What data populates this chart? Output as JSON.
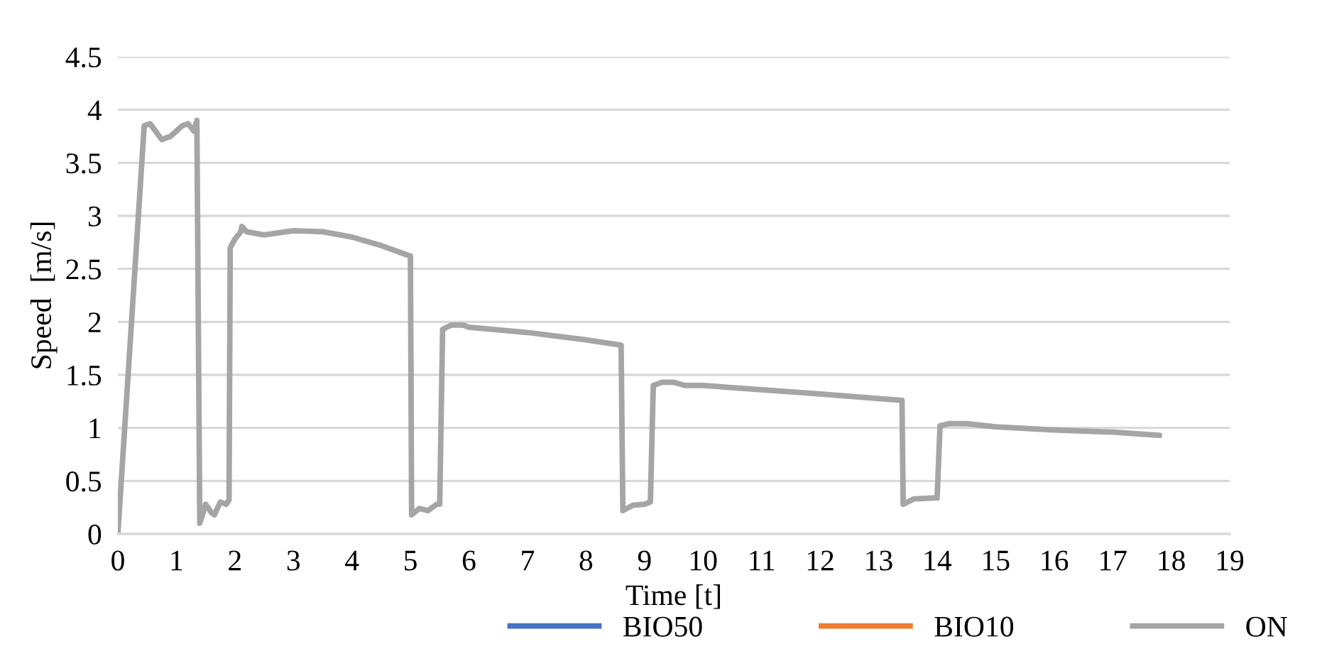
{
  "chart_data": {
    "type": "line",
    "xlabel": "Time [t]",
    "ylabel": "Speed  [m/s]",
    "x": [
      0,
      0.45,
      0.55,
      0.75,
      0.9,
      1.1,
      1.2,
      1.3,
      1.35,
      1.4,
      1.5,
      1.6,
      1.65,
      1.75,
      1.85,
      1.9,
      1.92,
      2.0,
      2.1,
      2.12,
      2.2,
      2.5,
      3.0,
      3.5,
      4.0,
      4.5,
      5.0,
      5.02,
      5.15,
      5.3,
      5.45,
      5.5,
      5.55,
      5.7,
      5.9,
      6.0,
      7.0,
      8.0,
      8.6,
      8.63,
      8.8,
      9.0,
      9.1,
      9.15,
      9.3,
      9.5,
      9.7,
      10,
      11,
      12,
      13.4,
      13.42,
      13.6,
      14.0,
      14.05,
      14.2,
      14.5,
      15,
      16,
      17,
      17.8
    ],
    "series": [
      {
        "name": "BIO50",
        "color": "#4472c4",
        "values": [
          null,
          null,
          null,
          null,
          null,
          null,
          null,
          null,
          null,
          null,
          null,
          null,
          null,
          null,
          null,
          null,
          null,
          null,
          null,
          null,
          null,
          null,
          null,
          null,
          null,
          null,
          null,
          null,
          null,
          null,
          null,
          null,
          null,
          null,
          null,
          null,
          null,
          null,
          null,
          null,
          null,
          null,
          null,
          null,
          null,
          null,
          null,
          null,
          null,
          null,
          null,
          null,
          null,
          null,
          null,
          null,
          null,
          null,
          null,
          null,
          null
        ]
      },
      {
        "name": "BIO10",
        "color": "#ed7d31",
        "values": [
          null,
          null,
          null,
          null,
          null,
          null,
          null,
          null,
          null,
          null,
          null,
          null,
          null,
          null,
          null,
          null,
          null,
          null,
          null,
          null,
          null,
          null,
          null,
          null,
          null,
          null,
          null,
          null,
          null,
          null,
          null,
          null,
          null,
          null,
          null,
          null,
          null,
          null,
          null,
          null,
          null,
          null,
          null,
          null,
          null,
          null,
          null,
          null,
          null,
          null,
          null,
          null,
          null,
          null,
          null,
          null,
          null,
          null,
          null,
          null,
          null
        ]
      },
      {
        "name": "ON",
        "color": "#a5a5a5",
        "values": [
          0,
          3.85,
          3.87,
          3.72,
          3.75,
          3.85,
          3.87,
          3.8,
          3.9,
          0.1,
          0.28,
          0.2,
          0.18,
          0.3,
          0.28,
          0.32,
          2.7,
          2.78,
          2.85,
          2.9,
          2.85,
          2.82,
          2.86,
          2.85,
          2.8,
          2.72,
          2.62,
          0.18,
          0.24,
          0.22,
          0.28,
          0.28,
          1.93,
          1.97,
          1.97,
          1.95,
          1.9,
          1.83,
          1.78,
          0.22,
          0.27,
          0.28,
          0.3,
          1.4,
          1.43,
          1.43,
          1.4,
          1.4,
          1.36,
          1.32,
          1.26,
          0.28,
          0.33,
          0.34,
          1.02,
          1.04,
          1.04,
          1.01,
          0.98,
          0.96,
          0.93
        ]
      }
    ],
    "xlim": [
      0,
      19
    ],
    "xticks": [
      0,
      1,
      2,
      3,
      4,
      5,
      6,
      7,
      8,
      9,
      10,
      11,
      12,
      13,
      14,
      15,
      16,
      17,
      18,
      19
    ],
    "ylim": [
      0,
      4.5
    ],
    "yticks": [
      0,
      0.5,
      1,
      1.5,
      2,
      2.5,
      3,
      3.5,
      4,
      4.5
    ],
    "grid": "y",
    "legend": "bottom",
    "line_style": "solid",
    "marker": "none"
  }
}
